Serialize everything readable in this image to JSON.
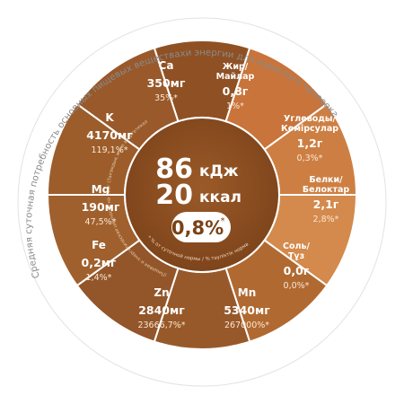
{
  "colors": {
    "outer_ring": "#ffffff",
    "ring_border": "#d9d9d9",
    "divider": "#ffffff",
    "brown_dark": "#8b4f22",
    "brown_mid": "#9a5b27",
    "orange_1": "#c9773b",
    "orange_2": "#cf8446",
    "orange_3": "#d68f52",
    "orange_4": "#b86c30",
    "center": "#8a4d1f",
    "arc_text": "#888888",
    "pill_bg": "#ffffff",
    "pill_text": "#7a4216"
  },
  "center": {
    "kj_value": "86",
    "kj_unit": "кДж",
    "kcal_value": "20",
    "kcal_unit": "ккал",
    "percent": "0,8%",
    "percent_mark": "*"
  },
  "curved_texts": {
    "outer_left": "Средняя суточная потребность основных пищевых веществахи энергии для взрослого человека",
    "inner_left": "(Пищевая и энергетическая ценность на 100г (Тағамдық және энергетикалық құндылығы / 100 г тағамдық",
    "inner_bottom_1": "* % от суточной нормы / % тәуліктік норма",
    "inner_bottom_2": "(нормадан / 100 г тағамдық және энергетикалық құндылығы / (Пищевая"
  },
  "segments": [
    {
      "id": "ca",
      "name": "Ca",
      "value": "350мг",
      "percent": "35%*"
    },
    {
      "id": "fat",
      "name": "Жир/\nМайлар",
      "value": "0,8г",
      "percent": "1%*"
    },
    {
      "id": "carbs",
      "name": "Углеводы/\nКөмірсулар",
      "value": "1,2г",
      "percent": "0,3%*"
    },
    {
      "id": "protein",
      "name": "Белки/\nБелоктар",
      "value": "2,1г",
      "percent": "2,8%*"
    },
    {
      "id": "salt",
      "name": "Соль/\nТұз",
      "value": "0,0г",
      "percent": "0,0%*"
    },
    {
      "id": "mn",
      "name": "Mn",
      "value": "5340мг",
      "percent": "267000%*"
    },
    {
      "id": "zn",
      "name": "Zn",
      "value": "2840мг",
      "percent": "23666,7%*"
    },
    {
      "id": "fe",
      "name": "Fe",
      "value": "0,2мг",
      "percent": "1,4%*"
    },
    {
      "id": "mg",
      "name": "Mg",
      "value": "190мг",
      "percent": "47,5%*"
    },
    {
      "id": "k",
      "name": "K",
      "value": "4170мг",
      "percent": "119,1%*"
    }
  ]
}
